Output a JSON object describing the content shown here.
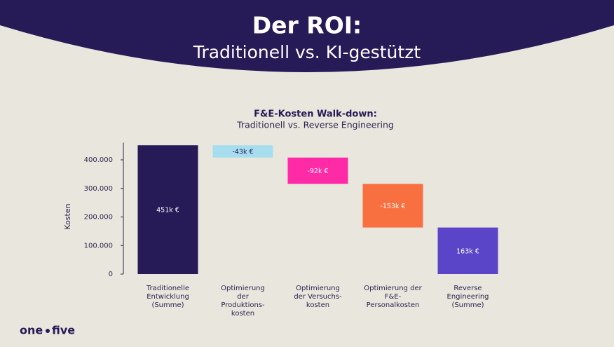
{
  "header": {
    "title": "Der ROI:",
    "subtitle": "Traditionell vs. KI-gestützt"
  },
  "logo": {
    "left": "one",
    "right": "five"
  },
  "chart_data": {
    "type": "waterfall",
    "title": "F&E-Kosten Walk-down:",
    "subtitle": "Traditionell vs. Reverse Engineering",
    "y_label": "Kosten",
    "categories": [
      "Traditionelle\nEntwicklung\n(Summe)",
      "Optimierung\nder\nProduktions-\nkosten",
      "Optimierung\nder Versuchs-\nkosten",
      "Optimierung der\nF&E-\nPersonalkosten",
      "Reverse\nEngineering\n(Summe)"
    ],
    "values": [
      451000,
      -43000,
      -92000,
      -153000,
      163000
    ],
    "value_labels": [
      "451k €",
      "-43k €",
      "-92k €",
      "-153k €",
      "163k €"
    ],
    "totals": [
      true,
      false,
      false,
      false,
      true
    ],
    "colors": [
      "#261a57",
      "#a6def0",
      "#ff2aa6",
      "#f8703f",
      "#5a44c8"
    ],
    "ylim": [
      0,
      460000
    ],
    "yticks": [
      0,
      {
        "value": 100000,
        "label": "100.000"
      },
      {
        "value": 200000,
        "label": "200.000"
      },
      {
        "value": 300000,
        "label": "300.000"
      },
      {
        "value": 400000,
        "label": "400.000"
      }
    ],
    "grid": false
  }
}
